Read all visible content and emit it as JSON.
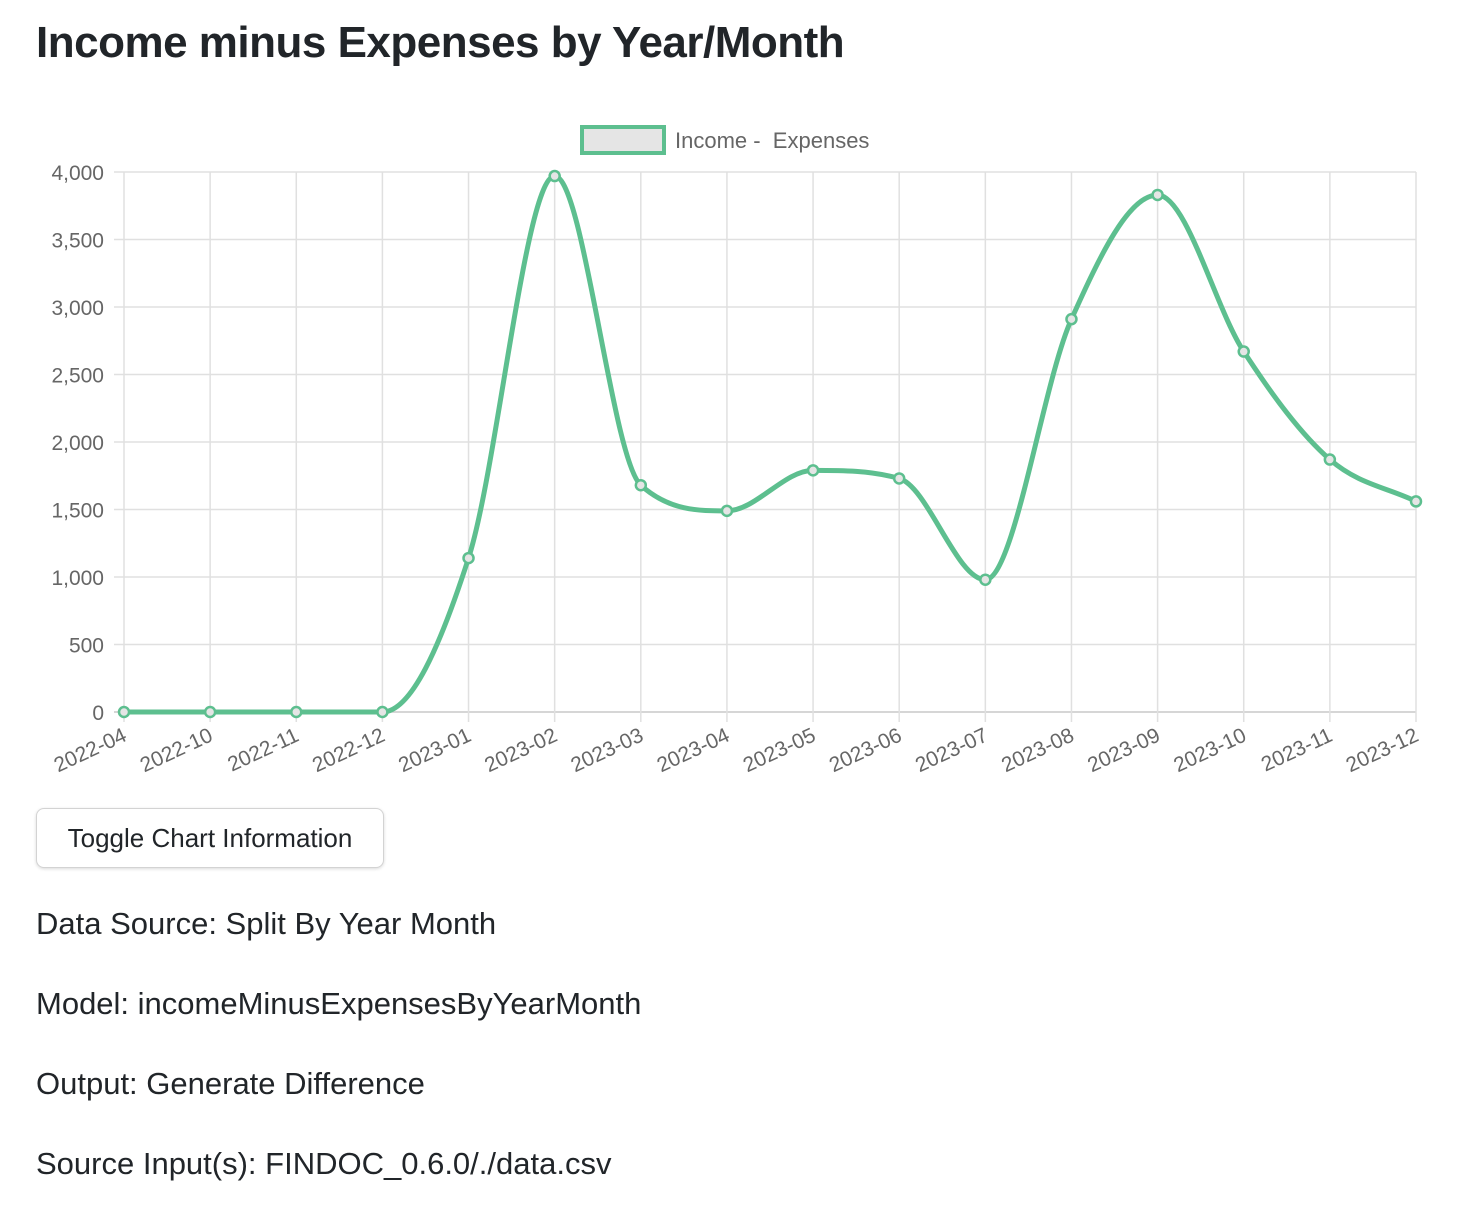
{
  "page": {
    "title": "Income minus Expenses by Year/Month"
  },
  "toggle_button": {
    "label": "Toggle Chart Information"
  },
  "info": {
    "data_source": "Data Source: Split By Year Month",
    "model": "Model: incomeMinusExpensesByYearMonth",
    "output": "Output: Generate Difference",
    "source_inputs": "Source Input(s): FINDOC_0.6.0/./data.csv"
  },
  "colors": {
    "line": "#5dbf8f",
    "legend_fill": "#e5e5e5",
    "grid": "#e0e0e0",
    "tick_text": "#666666"
  },
  "chart_data": {
    "type": "line",
    "title": "",
    "xlabel": "",
    "ylabel": "",
    "categories": [
      "2022-04",
      "2022-10",
      "2022-11",
      "2022-12",
      "2023-01",
      "2023-02",
      "2023-03",
      "2023-04",
      "2023-05",
      "2023-06",
      "2023-07",
      "2023-08",
      "2023-09",
      "2023-10",
      "2023-11",
      "2023-12"
    ],
    "series": [
      {
        "name": "Income -  Expenses",
        "values": [
          0,
          0,
          0,
          0,
          1140,
          3970,
          1680,
          1490,
          1790,
          1730,
          980,
          2910,
          3830,
          2670,
          1870,
          1560
        ]
      }
    ],
    "ylim": [
      0,
      4000
    ],
    "yticks": [
      0,
      500,
      1000,
      1500,
      2000,
      2500,
      3000,
      3500,
      4000
    ],
    "ytick_labels": [
      "0",
      "500",
      "1,000",
      "1,500",
      "2,000",
      "2,500",
      "3,000",
      "3,500",
      "4,000"
    ],
    "grid": true,
    "legend_position": "top-center"
  }
}
